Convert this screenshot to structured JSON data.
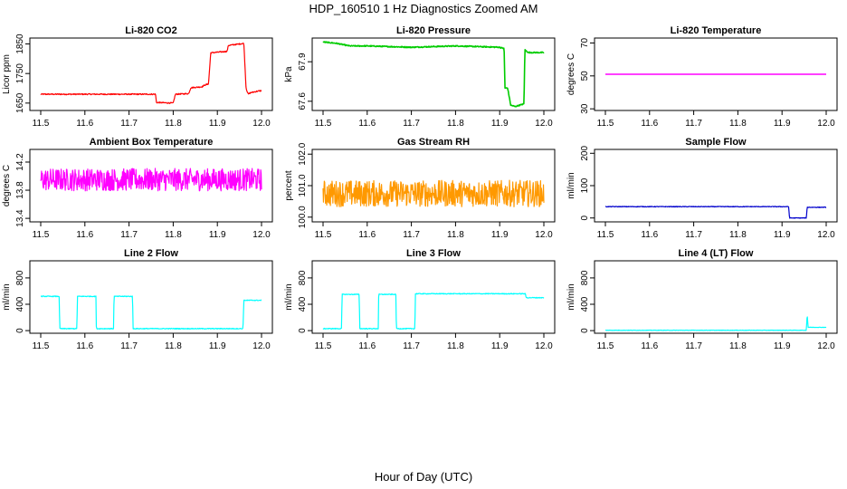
{
  "figure": {
    "title": "HDP_160510  1 Hz Diagnostics Zoomed AM",
    "xlabel": "Hour of Day (UTC)"
  },
  "chart_data": [
    {
      "type": "line",
      "title": "Li-820 CO2",
      "ylabel": "Licor ppm",
      "color": "#ff0000",
      "xlim": [
        11.5,
        12.0
      ],
      "ylim": [
        1625,
        1870
      ],
      "x_ticks": [
        "11.5",
        "11.6",
        "11.7",
        "11.8",
        "11.9",
        "12.0"
      ],
      "y_ticks": [
        "1650",
        "1750",
        "1850"
      ],
      "y_tick_values": [
        1650,
        1750,
        1850
      ],
      "x": [
        11.5,
        11.76,
        11.762,
        11.8,
        11.805,
        11.835,
        11.84,
        11.865,
        11.87,
        11.88,
        11.885,
        11.922,
        11.925,
        11.95,
        11.96,
        11.965,
        11.97,
        11.975,
        11.99,
        12.0
      ],
      "values": [
        1680,
        1680,
        1652,
        1650,
        1680,
        1682,
        1702,
        1705,
        1710,
        1715,
        1820,
        1825,
        1845,
        1850,
        1852,
        1700,
        1680,
        1685,
        1690,
        1692
      ],
      "noise": 2
    },
    {
      "type": "line",
      "title": "Li-820 Pressure",
      "ylabel": "kPa",
      "color": "#00cc00",
      "xlim": [
        11.5,
        12.0
      ],
      "ylim": [
        67.53,
        68.08
      ],
      "x_ticks": [
        "11.5",
        "11.6",
        "11.7",
        "11.8",
        "11.9",
        "12.0"
      ],
      "y_ticks": [
        "67.6",
        "67.9"
      ],
      "y_tick_values": [
        67.6,
        67.9
      ],
      "x": [
        11.5,
        11.53,
        11.56,
        11.6,
        11.7,
        11.8,
        11.9,
        11.91,
        11.912,
        11.918,
        11.925,
        11.935,
        11.945,
        11.955,
        11.957,
        11.965,
        11.98,
        12.0
      ],
      "values": [
        68.05,
        68.04,
        68.02,
        68.02,
        68.01,
        68.02,
        68.01,
        68.0,
        67.7,
        67.7,
        67.57,
        67.56,
        67.57,
        67.58,
        67.99,
        67.97,
        67.97,
        67.97
      ],
      "noise": 0.004
    },
    {
      "type": "line",
      "title": "Li-820 Temperature",
      "ylabel": "degrees C",
      "color": "#ff00ff",
      "xlim": [
        11.5,
        12.0
      ],
      "ylim": [
        29,
        73
      ],
      "x_ticks": [
        "11.5",
        "11.6",
        "11.7",
        "11.8",
        "11.9",
        "12.0"
      ],
      "y_ticks": [
        "30",
        "50",
        "70"
      ],
      "y_tick_values": [
        30,
        50,
        70
      ],
      "x": [
        11.5,
        12.0
      ],
      "values": [
        51,
        51
      ],
      "noise": 0
    },
    {
      "type": "line",
      "title": "Ambient Box Temperature",
      "ylabel": "degrees C",
      "color": "#ff00ff",
      "xlim": [
        11.5,
        12.0
      ],
      "ylim": [
        13.35,
        14.38
      ],
      "x_ticks": [
        "11.5",
        "11.6",
        "11.7",
        "11.8",
        "11.9",
        "12.0"
      ],
      "y_ticks": [
        "13.4",
        "13.8",
        "14.2"
      ],
      "y_tick_values": [
        13.4,
        13.8,
        14.2
      ],
      "x": [
        11.5,
        12.0
      ],
      "values": [
        13.95,
        13.95
      ],
      "noise": 0.16
    },
    {
      "type": "line",
      "title": "Gas Stream RH",
      "ylabel": "percent",
      "color": "#ff9900",
      "xlim": [
        11.5,
        12.0
      ],
      "ylim": [
        99.85,
        102.15
      ],
      "x_ticks": [
        "11.5",
        "11.6",
        "11.7",
        "11.8",
        "11.9",
        "12.0"
      ],
      "y_ticks": [
        "100.0",
        "101.0",
        "102.0"
      ],
      "y_tick_values": [
        100.0,
        101.0,
        102.0
      ],
      "x": [
        11.5,
        12.0
      ],
      "values": [
        100.75,
        100.75
      ],
      "noise": 0.42
    },
    {
      "type": "line",
      "title": "Sample Flow",
      "ylabel": "ml/min",
      "color": "#0000cc",
      "xlim": [
        11.5,
        12.0
      ],
      "ylim": [
        -12,
        212
      ],
      "x_ticks": [
        "11.5",
        "11.6",
        "11.7",
        "11.8",
        "11.9",
        "12.0"
      ],
      "y_ticks": [
        "0",
        "100",
        "200"
      ],
      "y_tick_values": [
        0,
        100,
        200
      ],
      "x": [
        11.5,
        11.915,
        11.917,
        11.955,
        11.957,
        12.0
      ],
      "values": [
        35,
        35,
        0,
        0,
        33,
        33
      ],
      "noise": 1
    },
    {
      "type": "line",
      "title": "Line 2 Flow",
      "ylabel": "ml/min",
      "color": "#00ffff",
      "xlim": [
        11.5,
        12.0
      ],
      "ylim": [
        -40,
        1060
      ],
      "x_ticks": [
        "11.5",
        "11.6",
        "11.7",
        "11.8",
        "11.9",
        "12.0"
      ],
      "y_ticks": [
        "0",
        "400",
        "800"
      ],
      "y_tick_values": [
        0,
        400,
        800
      ],
      "x": [
        11.5,
        11.542,
        11.543,
        11.582,
        11.583,
        11.625,
        11.626,
        11.665,
        11.666,
        11.708,
        11.709,
        11.958,
        11.96,
        12.0
      ],
      "values": [
        520,
        520,
        30,
        30,
        520,
        520,
        30,
        30,
        520,
        520,
        30,
        30,
        460,
        460
      ],
      "noise": 6
    },
    {
      "type": "line",
      "title": "Line 3 Flow",
      "ylabel": "ml/min",
      "color": "#00ffff",
      "xlim": [
        11.5,
        12.0
      ],
      "ylim": [
        -40,
        1060
      ],
      "x_ticks": [
        "11.5",
        "11.6",
        "11.7",
        "11.8",
        "11.9",
        "12.0"
      ],
      "y_ticks": [
        "0",
        "400",
        "800"
      ],
      "y_tick_values": [
        0,
        400,
        800
      ],
      "x": [
        11.5,
        11.542,
        11.543,
        11.582,
        11.583,
        11.625,
        11.626,
        11.665,
        11.666,
        11.708,
        11.709,
        11.958,
        11.96,
        12.0
      ],
      "values": [
        30,
        30,
        550,
        550,
        30,
        30,
        550,
        550,
        30,
        30,
        560,
        560,
        500,
        500
      ],
      "noise": 6
    },
    {
      "type": "line",
      "title": "Line 4 (LT) Flow",
      "ylabel": "ml/min",
      "color": "#00ffff",
      "xlim": [
        11.5,
        12.0
      ],
      "ylim": [
        -40,
        1060
      ],
      "x_ticks": [
        "11.5",
        "11.6",
        "11.7",
        "11.8",
        "11.9",
        "12.0"
      ],
      "y_ticks": [
        "0",
        "400",
        "800"
      ],
      "y_tick_values": [
        0,
        400,
        800
      ],
      "x": [
        11.5,
        11.955,
        11.957,
        11.959,
        11.962,
        12.0
      ],
      "values": [
        5,
        5,
        250,
        50,
        50,
        50
      ],
      "noise": 3
    }
  ]
}
